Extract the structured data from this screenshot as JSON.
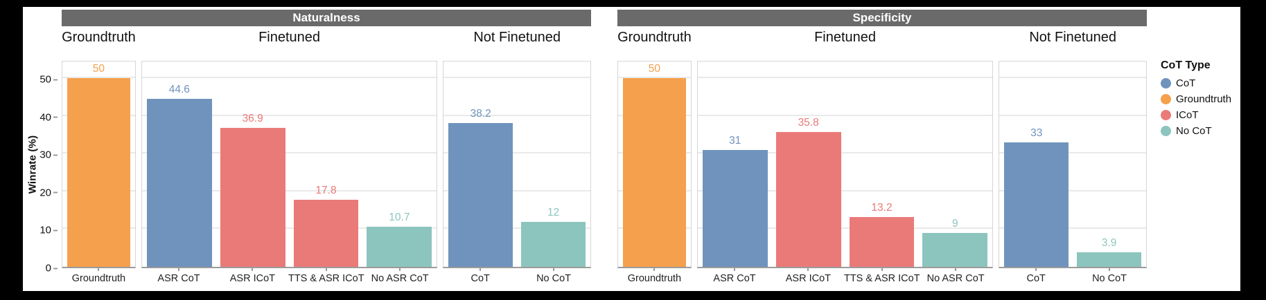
{
  "figure": {
    "ylabel": "Winrate (%)",
    "background_color": "#000000",
    "plot_background": "#ffffff",
    "facet_header_bg": "#6a6a6a",
    "facet_header_text_color": "#ffffff"
  },
  "legend": {
    "title": "CoT Type",
    "entries": [
      {
        "label": "CoT",
        "color": "#6f93bd"
      },
      {
        "label": "Groundtruth",
        "color": "#f5a04c"
      },
      {
        "label": "ICoT",
        "color": "#ea7a78"
      },
      {
        "label": "No CoT",
        "color": "#8cc5be"
      }
    ]
  },
  "chart_data": {
    "type": "bar",
    "ylabel": "Winrate (%)",
    "ylim": [
      0,
      55
    ],
    "yticks": [
      0,
      10,
      20,
      30,
      40,
      50
    ],
    "grid": true,
    "legend_position": "right",
    "series_colors": {
      "CoT": "#6f93bd",
      "Groundtruth": "#f5a04c",
      "ICoT": "#ea7a78",
      "No CoT": "#8cc5be"
    },
    "facets": [
      {
        "title": "Naturalness",
        "panels": [
          {
            "title": "Groundtruth",
            "bars": [
              {
                "label": "Groundtruth",
                "value": 50,
                "value_label": "50",
                "series": "Groundtruth"
              }
            ]
          },
          {
            "title": "Finetuned",
            "bars": [
              {
                "label": "ASR CoT",
                "value": 44.6,
                "value_label": "44.6",
                "series": "CoT"
              },
              {
                "label": "ASR ICoT",
                "value": 36.9,
                "value_label": "36.9",
                "series": "ICoT"
              },
              {
                "label": "TTS & ASR ICoT",
                "value": 17.8,
                "value_label": "17.8",
                "series": "ICoT"
              },
              {
                "label": "No ASR CoT",
                "value": 10.7,
                "value_label": "10.7",
                "series": "No CoT"
              }
            ]
          },
          {
            "title": "Not Finetuned",
            "bars": [
              {
                "label": "CoT",
                "value": 38.2,
                "value_label": "38.2",
                "series": "CoT"
              },
              {
                "label": "No CoT",
                "value": 12,
                "value_label": "12",
                "series": "No CoT"
              }
            ]
          }
        ]
      },
      {
        "title": "Specificity",
        "panels": [
          {
            "title": "Groundtruth",
            "bars": [
              {
                "label": "Groundtruth",
                "value": 50,
                "value_label": "50",
                "series": "Groundtruth"
              }
            ]
          },
          {
            "title": "Finetuned",
            "bars": [
              {
                "label": "ASR CoT",
                "value": 31,
                "value_label": "31",
                "series": "CoT"
              },
              {
                "label": "ASR ICoT",
                "value": 35.8,
                "value_label": "35.8",
                "series": "ICoT"
              },
              {
                "label": "TTS & ASR ICoT",
                "value": 13.2,
                "value_label": "13.2",
                "series": "ICoT"
              },
              {
                "label": "No ASR CoT",
                "value": 9,
                "value_label": "9",
                "series": "No CoT"
              }
            ]
          },
          {
            "title": "Not Finetuned",
            "bars": [
              {
                "label": "CoT",
                "value": 33,
                "value_label": "33",
                "series": "CoT"
              },
              {
                "label": "No CoT",
                "value": 3.9,
                "value_label": "3.9",
                "series": "No CoT"
              }
            ]
          }
        ]
      }
    ]
  }
}
